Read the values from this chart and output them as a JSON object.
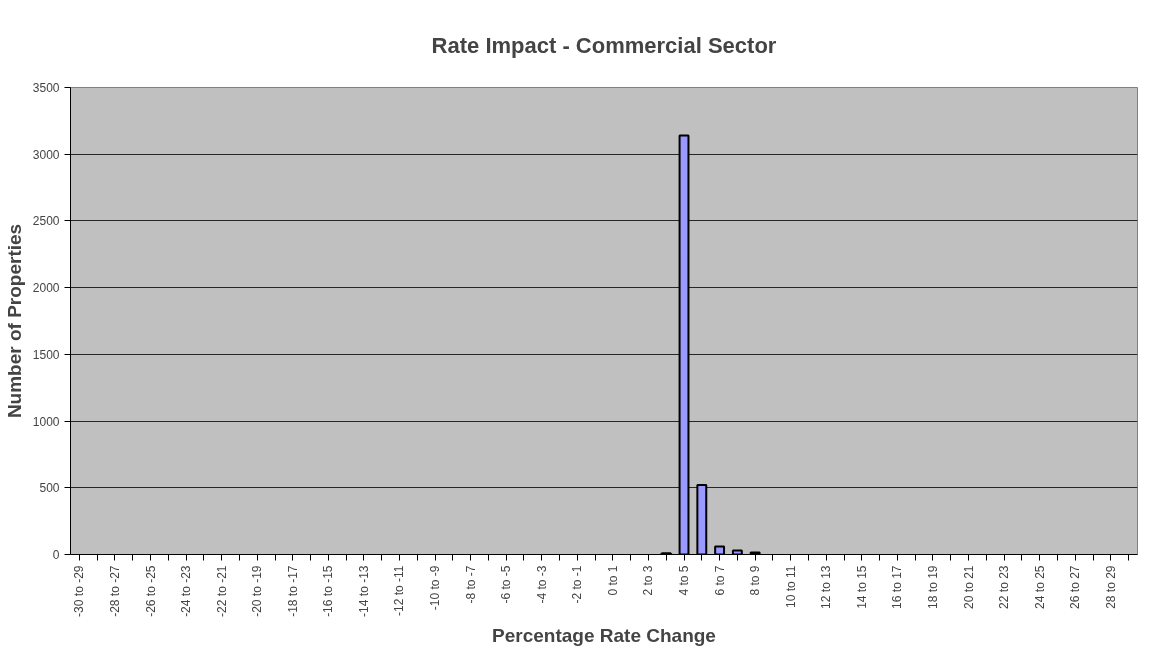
{
  "chart_data": {
    "type": "bar",
    "title": "Rate Impact - Commercial Sector",
    "xlabel": "Percentage Rate Change",
    "ylabel": "Number of Properties",
    "categories": [
      "-30 to -29",
      null,
      "-28 to -27",
      null,
      "-26 to -25",
      null,
      "-24 to -23",
      null,
      "-22 to -21",
      null,
      "-20 to -19",
      null,
      "-18 to -17",
      null,
      "-16 to -15",
      null,
      "-14 to -13",
      null,
      "-12 to -11",
      null,
      "-10 to -9",
      null,
      "-8 to -7",
      null,
      "-6 to -5",
      null,
      "-4 to -3",
      null,
      "-2 to -1",
      null,
      "0 to 1",
      null,
      "2 to 3",
      null,
      "4 to 5",
      null,
      "6 to 7",
      null,
      "8 to 9",
      null,
      "10 to 11",
      null,
      "12 to 13",
      null,
      "14 to 15",
      null,
      "16 to 17",
      null,
      "18 to 19",
      null,
      "20 to 21",
      null,
      "22 to 23",
      null,
      "24 to 25",
      null,
      "26 to 27",
      null,
      "28 to 29",
      null
    ],
    "values": [
      null,
      null,
      null,
      null,
      null,
      null,
      null,
      null,
      null,
      null,
      null,
      null,
      null,
      null,
      null,
      null,
      null,
      null,
      null,
      null,
      null,
      null,
      null,
      null,
      null,
      null,
      null,
      null,
      null,
      null,
      null,
      null,
      null,
      10,
      3140,
      520,
      60,
      30,
      15,
      null,
      null,
      null,
      null,
      null,
      null,
      null,
      null,
      null,
      null,
      null,
      null,
      null,
      null,
      null,
      null,
      null,
      null,
      null,
      null,
      null
    ],
    "color": "#9999ff",
    "ylim": [
      0,
      3500
    ],
    "yticks": [
      0,
      500,
      1000,
      1500,
      2000,
      2500,
      3000,
      3500
    ],
    "grid": "y"
  }
}
